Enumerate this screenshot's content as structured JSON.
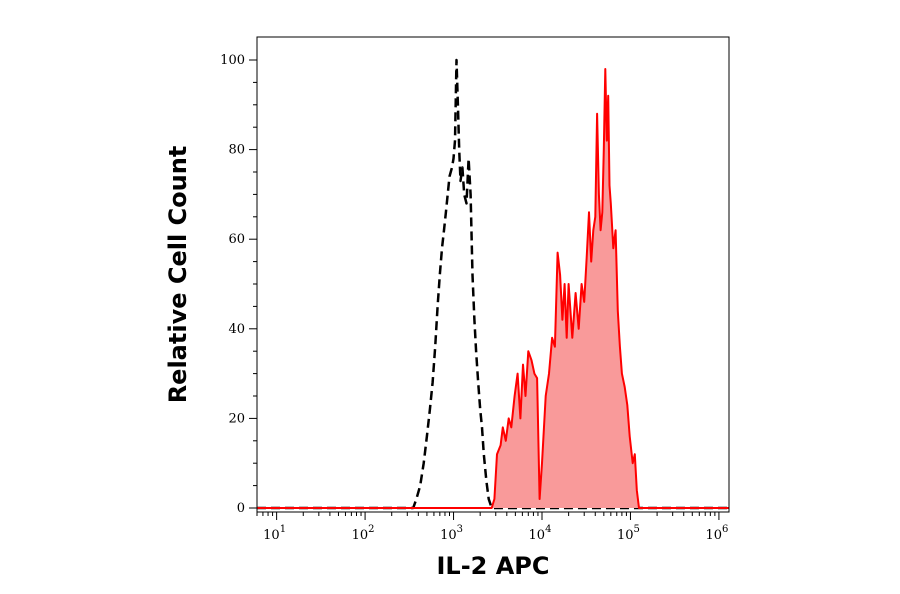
{
  "chart_data": {
    "type": "area",
    "xlabel": "IL-2 APC",
    "ylabel": "Relative Cell Count",
    "x_scale": "log",
    "xlim": [
      6,
      1300000
    ],
    "ylim": [
      0,
      100
    ],
    "x_ticks": [
      {
        "base": "10",
        "exp": "1",
        "value": 10
      },
      {
        "base": "10",
        "exp": "2",
        "value": 100
      },
      {
        "base": "10",
        "exp": "3",
        "value": 1000
      },
      {
        "base": "10",
        "exp": "4",
        "value": 10000
      },
      {
        "base": "10",
        "exp": "5",
        "value": 100000
      },
      {
        "base": "10",
        "exp": "6",
        "value": 1000000
      }
    ],
    "y_ticks": [
      "0",
      "20",
      "40",
      "60",
      "80",
      "100"
    ],
    "grid": false,
    "series": [
      {
        "style": "black-dashed-line",
        "color": "#000000",
        "points": [
          [
            6,
            0
          ],
          [
            350,
            0
          ],
          [
            380,
            2
          ],
          [
            420,
            5
          ],
          [
            460,
            10
          ],
          [
            500,
            16
          ],
          [
            540,
            22
          ],
          [
            580,
            28
          ],
          [
            620,
            36
          ],
          [
            660,
            45
          ],
          [
            700,
            52
          ],
          [
            740,
            58
          ],
          [
            780,
            62
          ],
          [
            820,
            66
          ],
          [
            860,
            70
          ],
          [
            900,
            74
          ],
          [
            960,
            76
          ],
          [
            1000,
            78
          ],
          [
            1040,
            82
          ],
          [
            1080,
            100
          ],
          [
            1120,
            90
          ],
          [
            1160,
            80
          ],
          [
            1200,
            73
          ],
          [
            1260,
            76
          ],
          [
            1320,
            70
          ],
          [
            1400,
            68
          ],
          [
            1480,
            78
          ],
          [
            1560,
            70
          ],
          [
            1640,
            52
          ],
          [
            1720,
            42
          ],
          [
            1800,
            35
          ],
          [
            1900,
            28
          ],
          [
            2000,
            22
          ],
          [
            2100,
            18
          ],
          [
            2200,
            12
          ],
          [
            2350,
            6
          ],
          [
            2500,
            2
          ],
          [
            2700,
            0
          ],
          [
            1300000,
            0
          ]
        ]
      },
      {
        "style": "red-filled",
        "color": "#ff0000",
        "fill": "#f99a9a",
        "points": [
          [
            6,
            0
          ],
          [
            2700,
            0
          ],
          [
            2900,
            2
          ],
          [
            3100,
            12
          ],
          [
            3400,
            14
          ],
          [
            3600,
            18
          ],
          [
            3900,
            15
          ],
          [
            4200,
            20
          ],
          [
            4500,
            18
          ],
          [
            4900,
            25
          ],
          [
            5300,
            30
          ],
          [
            5700,
            20
          ],
          [
            6100,
            32
          ],
          [
            6500,
            25
          ],
          [
            7000,
            35
          ],
          [
            7600,
            33
          ],
          [
            8200,
            30
          ],
          [
            8800,
            29
          ],
          [
            9400,
            2
          ],
          [
            10000,
            10
          ],
          [
            11000,
            25
          ],
          [
            12000,
            30
          ],
          [
            13000,
            38
          ],
          [
            14000,
            36
          ],
          [
            15000,
            57
          ],
          [
            16000,
            52
          ],
          [
            17000,
            42
          ],
          [
            18000,
            50
          ],
          [
            19000,
            38
          ],
          [
            20000,
            50
          ],
          [
            22000,
            38
          ],
          [
            24000,
            48
          ],
          [
            26000,
            40
          ],
          [
            28000,
            50
          ],
          [
            30000,
            46
          ],
          [
            32000,
            56
          ],
          [
            34000,
            66
          ],
          [
            36000,
            55
          ],
          [
            38000,
            62
          ],
          [
            40000,
            65
          ],
          [
            42000,
            88
          ],
          [
            44000,
            70
          ],
          [
            46000,
            62
          ],
          [
            48000,
            66
          ],
          [
            50000,
            80
          ],
          [
            52000,
            98
          ],
          [
            54000,
            82
          ],
          [
            56000,
            92
          ],
          [
            58000,
            72
          ],
          [
            60000,
            68
          ],
          [
            64000,
            58
          ],
          [
            68000,
            62
          ],
          [
            72000,
            44
          ],
          [
            76000,
            36
          ],
          [
            80000,
            30
          ],
          [
            86000,
            27
          ],
          [
            92000,
            23
          ],
          [
            98000,
            16
          ],
          [
            106000,
            10
          ],
          [
            112000,
            12
          ],
          [
            118000,
            4
          ],
          [
            125000,
            0
          ],
          [
            1300000,
            0
          ]
        ]
      }
    ]
  }
}
